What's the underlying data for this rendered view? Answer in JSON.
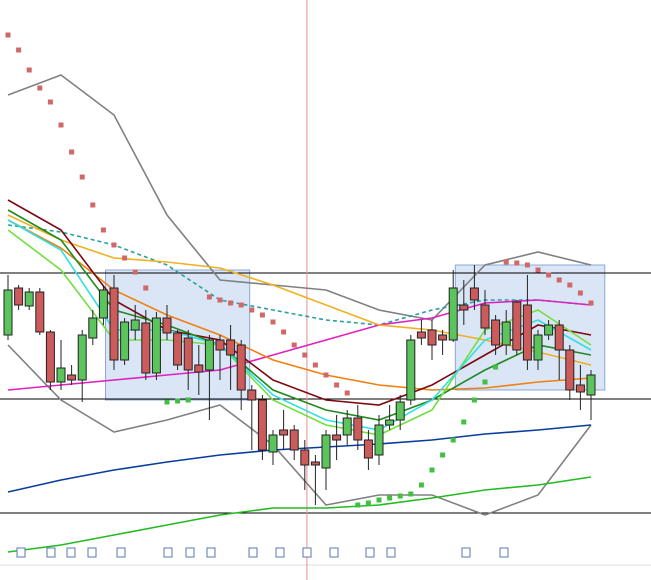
{
  "chart_data": {
    "type": "candlestick",
    "xlim": [
      -0.755,
      60.66
    ],
    "ylim": [
      0,
      580
    ],
    "up_color": "#5cc45c",
    "down_color": "#cc5c5c",
    "x": [
      0,
      1,
      2,
      3,
      4,
      5,
      6,
      7,
      8,
      9,
      10,
      11,
      12,
      13,
      14,
      15,
      16,
      17,
      18,
      19,
      20,
      21,
      22,
      23,
      24,
      25,
      26,
      27,
      28,
      29,
      30,
      31,
      32,
      33,
      34,
      35,
      36,
      37,
      38,
      39,
      40,
      41,
      42,
      43,
      44,
      45,
      46,
      47,
      48,
      49,
      50,
      51,
      52,
      53,
      54,
      55
    ],
    "ohlc": [
      [
        245,
        305,
        240,
        290
      ],
      [
        292,
        295,
        270,
        275
      ],
      [
        274,
        292,
        270,
        288
      ],
      [
        288,
        292,
        245,
        248
      ],
      [
        248,
        250,
        190,
        198
      ],
      [
        198,
        240,
        190,
        212
      ],
      [
        205,
        215,
        195,
        200
      ],
      [
        200,
        250,
        178,
        245
      ],
      [
        242,
        270,
        235,
        262
      ],
      [
        262,
        295,
        255,
        290
      ],
      [
        292,
        305,
        210,
        220
      ],
      [
        220,
        262,
        215,
        258
      ],
      [
        250,
        275,
        240,
        260
      ],
      [
        257,
        270,
        200,
        207
      ],
      [
        207,
        268,
        200,
        262
      ],
      [
        262,
        275,
        240,
        247
      ],
      [
        247,
        250,
        210,
        215
      ],
      [
        242,
        250,
        190,
        210
      ],
      [
        215,
        235,
        185,
        208
      ],
      [
        210,
        245,
        160,
        240
      ],
      [
        240,
        245,
        200,
        230
      ],
      [
        240,
        255,
        190,
        225
      ],
      [
        235,
        240,
        170,
        190
      ],
      [
        190,
        195,
        130,
        180
      ],
      [
        180,
        185,
        120,
        130
      ],
      [
        128,
        150,
        115,
        145
      ],
      [
        150,
        170,
        130,
        145
      ],
      [
        150,
        155,
        120,
        130
      ],
      [
        130,
        140,
        90,
        115
      ],
      [
        118,
        125,
        75,
        115
      ],
      [
        112,
        150,
        90,
        145
      ],
      [
        145,
        165,
        120,
        140
      ],
      [
        145,
        170,
        135,
        162
      ],
      [
        162,
        175,
        130,
        140
      ],
      [
        140,
        150,
        110,
        122
      ],
      [
        125,
        165,
        115,
        155
      ],
      [
        155,
        175,
        150,
        160
      ],
      [
        160,
        185,
        150,
        178
      ],
      [
        180,
        245,
        175,
        240
      ],
      [
        248,
        260,
        235,
        242
      ],
      [
        250,
        260,
        220,
        235
      ],
      [
        245,
        250,
        225,
        240
      ],
      [
        240,
        310,
        238,
        292
      ],
      [
        275,
        300,
        255,
        270
      ],
      [
        292,
        315,
        270,
        280
      ],
      [
        275,
        290,
        245,
        252
      ],
      [
        260,
        265,
        225,
        235
      ],
      [
        235,
        270,
        225,
        258
      ],
      [
        278,
        280,
        225,
        230
      ],
      [
        275,
        305,
        210,
        220
      ],
      [
        220,
        250,
        210,
        245
      ],
      [
        245,
        260,
        240,
        255
      ],
      [
        255,
        260,
        200,
        230
      ],
      [
        230,
        235,
        180,
        190
      ],
      [
        195,
        215,
        170,
        188
      ],
      [
        185,
        210,
        160,
        205
      ]
    ],
    "lines": [
      {
        "color": "#808080",
        "dash": false,
        "x": [
          0,
          5,
          10,
          15,
          20,
          25,
          30,
          35,
          40,
          45,
          50,
          55
        ],
        "values": [
          485,
          505,
          465,
          365,
          300,
          295,
          290,
          270,
          260,
          315,
          328,
          315
        ]
      },
      {
        "color": "#808080",
        "dash": false,
        "x": [
          0,
          5,
          10,
          15,
          20,
          25,
          30,
          35,
          40,
          45,
          50,
          55
        ],
        "values": [
          235,
          180,
          148,
          160,
          175,
          135,
          75,
          85,
          85,
          65,
          85,
          155
        ]
      },
      {
        "color": "#2aa0a0",
        "dash": true,
        "x": [
          0,
          5,
          10,
          15,
          20,
          25,
          30,
          35,
          40,
          45,
          50,
          55
        ],
        "values": [
          355,
          348,
          335,
          315,
          280,
          270,
          260,
          255,
          270,
          280,
          280,
          275
        ]
      },
      {
        "color": "#0a3c9c",
        "dash": false,
        "x": [
          0,
          5,
          10,
          15,
          20,
          25,
          30,
          35,
          40,
          45,
          50,
          55
        ],
        "values": [
          88,
          100,
          110,
          118,
          125,
          130,
          133,
          136,
          140,
          146,
          150,
          155
        ]
      },
      {
        "color": "#22bb22",
        "dash": false,
        "x": [
          0,
          5,
          10,
          15,
          20,
          25,
          30,
          35,
          40,
          45,
          50,
          55
        ],
        "values": [
          28,
          35,
          45,
          55,
          65,
          72,
          72,
          75,
          82,
          90,
          95,
          103
        ]
      },
      {
        "color": "#e020c0",
        "dash": false,
        "x": [
          0,
          5,
          10,
          15,
          20,
          25,
          30,
          35,
          40,
          45,
          50,
          55
        ],
        "values": [
          190,
          195,
          200,
          205,
          210,
          225,
          240,
          255,
          262,
          277,
          280,
          275
        ]
      },
      {
        "color": "#f0b020",
        "dash": false,
        "x": [
          0,
          5,
          10,
          15,
          20,
          25,
          30,
          35,
          40,
          45,
          50,
          55
        ],
        "values": [
          365,
          340,
          322,
          318,
          312,
          295,
          275,
          255,
          250,
          240,
          228,
          215
        ]
      },
      {
        "color": "#f08010",
        "dash": false,
        "x": [
          0,
          5,
          10,
          15,
          20,
          25,
          30,
          35,
          40,
          45,
          50,
          55
        ],
        "values": [
          360,
          332,
          290,
          265,
          245,
          220,
          205,
          195,
          190,
          192,
          198,
          202
        ]
      },
      {
        "color": "#7a0a10",
        "dash": false,
        "x": [
          0,
          5,
          10,
          15,
          20,
          25,
          30,
          35,
          40,
          45,
          50,
          55
        ],
        "values": [
          380,
          350,
          280,
          250,
          240,
          200,
          180,
          175,
          195,
          225,
          255,
          245
        ]
      },
      {
        "color": "#208a20",
        "dash": false,
        "x": [
          0,
          5,
          10,
          15,
          20,
          25,
          30,
          35,
          40,
          45,
          50,
          55
        ],
        "values": [
          370,
          340,
          270,
          255,
          235,
          190,
          170,
          160,
          180,
          210,
          235,
          225
        ]
      },
      {
        "color": "#70e040",
        "dash": false,
        "x": [
          0,
          5,
          10,
          15,
          20,
          25,
          30,
          35,
          40,
          45,
          50,
          55
        ],
        "values": [
          350,
          310,
          240,
          240,
          235,
          180,
          155,
          145,
          170,
          250,
          270,
          235
        ]
      },
      {
        "color": "#30e0e0",
        "dash": false,
        "x": [
          0,
          5,
          10,
          15,
          20,
          25,
          30,
          35,
          40,
          45,
          50,
          55
        ],
        "values": [
          360,
          330,
          250,
          250,
          235,
          185,
          160,
          150,
          180,
          240,
          260,
          230
        ]
      }
    ],
    "dots": [
      {
        "color": "#d06868",
        "x": [
          0,
          1,
          2,
          3,
          4,
          5,
          6,
          7,
          8,
          9,
          10,
          11,
          12,
          13,
          19,
          20,
          21,
          22,
          23,
          24,
          25,
          26,
          27,
          28,
          29,
          30,
          31,
          32,
          47,
          48,
          49,
          50,
          51,
          52,
          53,
          54,
          55
        ],
        "values": [
          545,
          530,
          510,
          492,
          478,
          455,
          428,
          403,
          375,
          350,
          335,
          322,
          308,
          292,
          283,
          280,
          277,
          275,
          270,
          265,
          258,
          248,
          235,
          225,
          215,
          205,
          195,
          187,
          318,
          317,
          315,
          310,
          305,
          300,
          295,
          287,
          277
        ]
      },
      {
        "color": "#40c040",
        "x": [
          15,
          16,
          17,
          33,
          34,
          35,
          36,
          37,
          38,
          39,
          40,
          41,
          42,
          43,
          44,
          45,
          46
        ],
        "values": [
          178,
          179,
          180,
          75,
          77,
          80,
          82,
          84,
          86,
          95,
          110,
          125,
          140,
          158,
          180,
          198,
          213
        ]
      }
    ],
    "levels": [
      307,
      181,
      67
    ],
    "zones": [
      {
        "x": [
          9.2,
          22.8
        ],
        "y": [
          180,
          310
        ]
      },
      {
        "x": [
          42.2,
          56.3
        ],
        "y": [
          190,
          315
        ]
      }
    ],
    "cursor_x": 28.2
  }
}
